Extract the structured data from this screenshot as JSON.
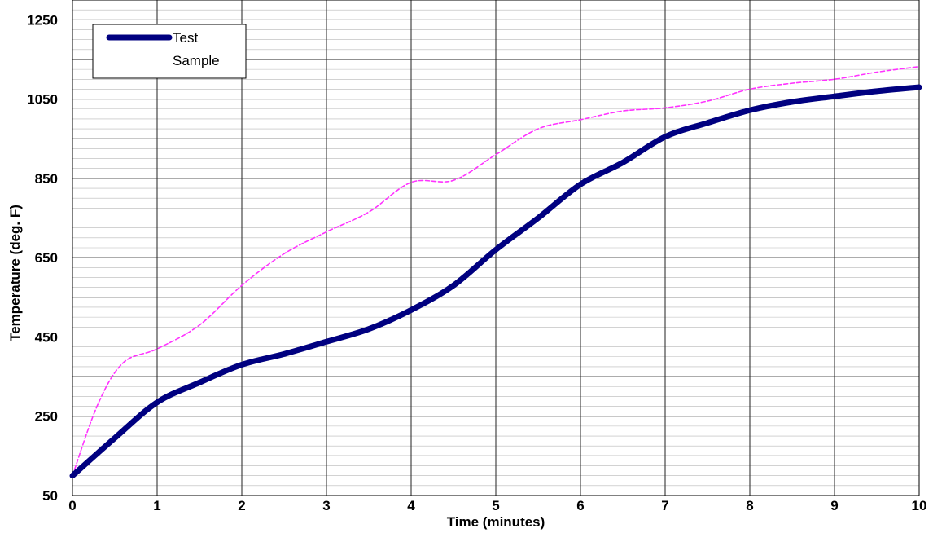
{
  "chart_data": {
    "type": "line",
    "title": "",
    "xlabel": "Time (minutes)",
    "ylabel": "Temperature (deg. F)",
    "xlim": [
      0,
      10
    ],
    "ylim": [
      50,
      1300
    ],
    "x_ticks": [
      0,
      1,
      2,
      3,
      4,
      5,
      6,
      7,
      8,
      9,
      10
    ],
    "y_ticks": [
      50,
      250,
      450,
      650,
      850,
      1050,
      1250
    ],
    "grid": true,
    "legend": "top-left",
    "series": [
      {
        "name": "Test Sample",
        "color": "#000080",
        "style": "solid-thick",
        "x": [
          0,
          0.5,
          1,
          1.5,
          2,
          2.5,
          3,
          3.5,
          4,
          4.5,
          5,
          5.5,
          6,
          6.5,
          7,
          7.5,
          8,
          8.5,
          9,
          9.5,
          10
        ],
        "y": [
          100,
          195,
          285,
          335,
          380,
          407,
          438,
          470,
          518,
          580,
          670,
          750,
          835,
          890,
          955,
          990,
          1022,
          1043,
          1057,
          1070,
          1080
        ]
      },
      {
        "name": "",
        "color": "#ff33ff",
        "style": "dashed-thin",
        "x": [
          0,
          0.3,
          0.6,
          1,
          1.5,
          2,
          2.5,
          3,
          3.5,
          4,
          4.5,
          5,
          5.5,
          6,
          6.5,
          7,
          7.5,
          8,
          8.5,
          9,
          9.5,
          10
        ],
        "y": [
          100,
          280,
          385,
          420,
          480,
          580,
          660,
          715,
          765,
          840,
          845,
          910,
          975,
          998,
          1020,
          1028,
          1045,
          1075,
          1090,
          1100,
          1118,
          1132
        ]
      }
    ]
  }
}
